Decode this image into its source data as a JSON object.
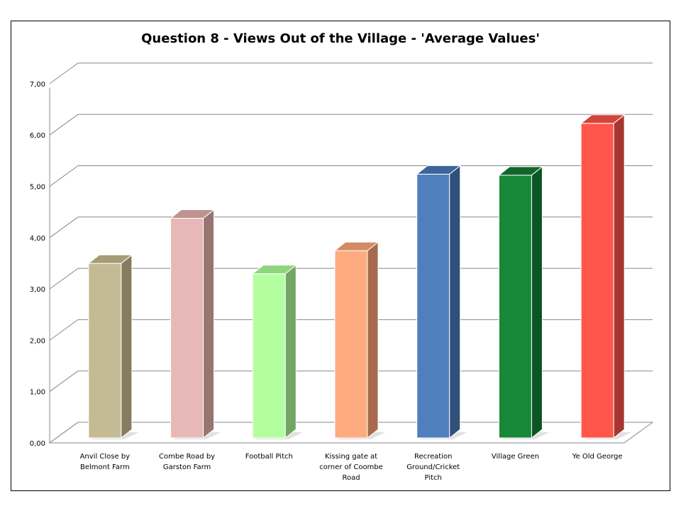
{
  "chart_data": {
    "type": "bar",
    "title": "Question 8 - Views Out of the Village - 'Average Values'",
    "categories": [
      "Anvil Close by Belmont Farm",
      "Combe Road by Garston Farm",
      "Football Pitch",
      "Kissing gate at corner of Coombe Road",
      "Recreation Ground/Cricket Pitch",
      "Village Green",
      "Ye Old George"
    ],
    "category_lines": [
      [
        "Anvil Close by",
        "Belmont Farm"
      ],
      [
        "Combe Road by",
        "Garston Farm"
      ],
      [
        "Football Pitch"
      ],
      [
        "Kissing gate at",
        "corner of Coombe",
        "Road"
      ],
      [
        "Recreation",
        "Ground/Cricket",
        "Pitch"
      ],
      [
        "Village Green"
      ],
      [
        "Ye Old George"
      ]
    ],
    "values": [
      3.4,
      4.28,
      3.2,
      3.65,
      5.14,
      5.12,
      6.13
    ],
    "colors": [
      {
        "front": "#c4bb94",
        "side": "#857c5e",
        "top": "#a69c75"
      },
      {
        "front": "#e6b8b7",
        "side": "#967573",
        "top": "#bf9390"
      },
      {
        "front": "#b3ff9f",
        "side": "#73a565",
        "top": "#8fd47e"
      },
      {
        "front": "#fdab7f",
        "side": "#a86a4e",
        "top": "#d48a64"
      },
      {
        "front": "#4f80bd",
        "side": "#30507a",
        "top": "#3c6599"
      },
      {
        "front": "#168838",
        "side": "#0d5524",
        "top": "#10672b"
      },
      {
        "front": "#ff554a",
        "side": "#a83630",
        "top": "#d5443b"
      }
    ],
    "ylim": [
      0,
      7
    ],
    "yticks": [
      "0,00",
      "1,00",
      "2,00",
      "3,00",
      "4,00",
      "5,00",
      "6,00",
      "7,00"
    ],
    "grid": true,
    "legend": "none"
  }
}
